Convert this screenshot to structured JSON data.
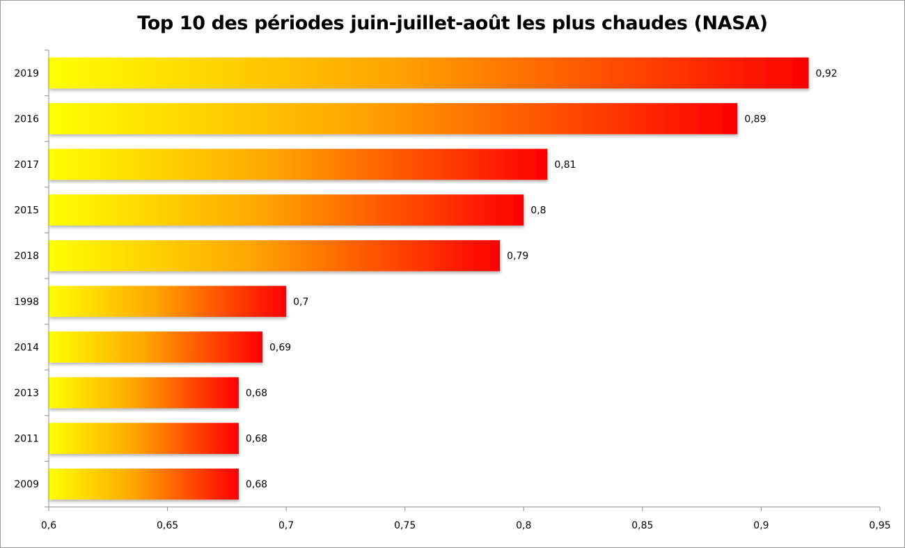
{
  "chart_data": {
    "type": "bar",
    "orientation": "horizontal",
    "title": "Top 10 des périodes juin-juillet-août les plus chaudes (NASA)",
    "xlabel": "",
    "ylabel": "",
    "categories": [
      "2019",
      "2016",
      "2017",
      "2015",
      "2018",
      "1998",
      "2014",
      "2013",
      "2011",
      "2009"
    ],
    "values": [
      0.92,
      0.89,
      0.81,
      0.8,
      0.79,
      0.7,
      0.69,
      0.68,
      0.68,
      0.68
    ],
    "value_labels": [
      "0,92",
      "0,89",
      "0,81",
      "0,8",
      "0,79",
      "0,7",
      "0,69",
      "0,68",
      "0,68",
      "0,68"
    ],
    "xlim": [
      0.6,
      0.95
    ],
    "xticks": [
      0.6,
      0.65,
      0.7,
      0.75,
      0.8,
      0.85,
      0.9,
      0.95
    ],
    "xtick_labels": [
      "0,6",
      "0,65",
      "0,7",
      "0,75",
      "0,8",
      "0,85",
      "0,9",
      "0,95"
    ],
    "grid": false,
    "legend": "none",
    "colors": {
      "gradient_start": "#ffff00",
      "gradient_mid": "#ffa500",
      "gradient_end": "#ff0000",
      "axis": "#8c8c8c"
    }
  }
}
